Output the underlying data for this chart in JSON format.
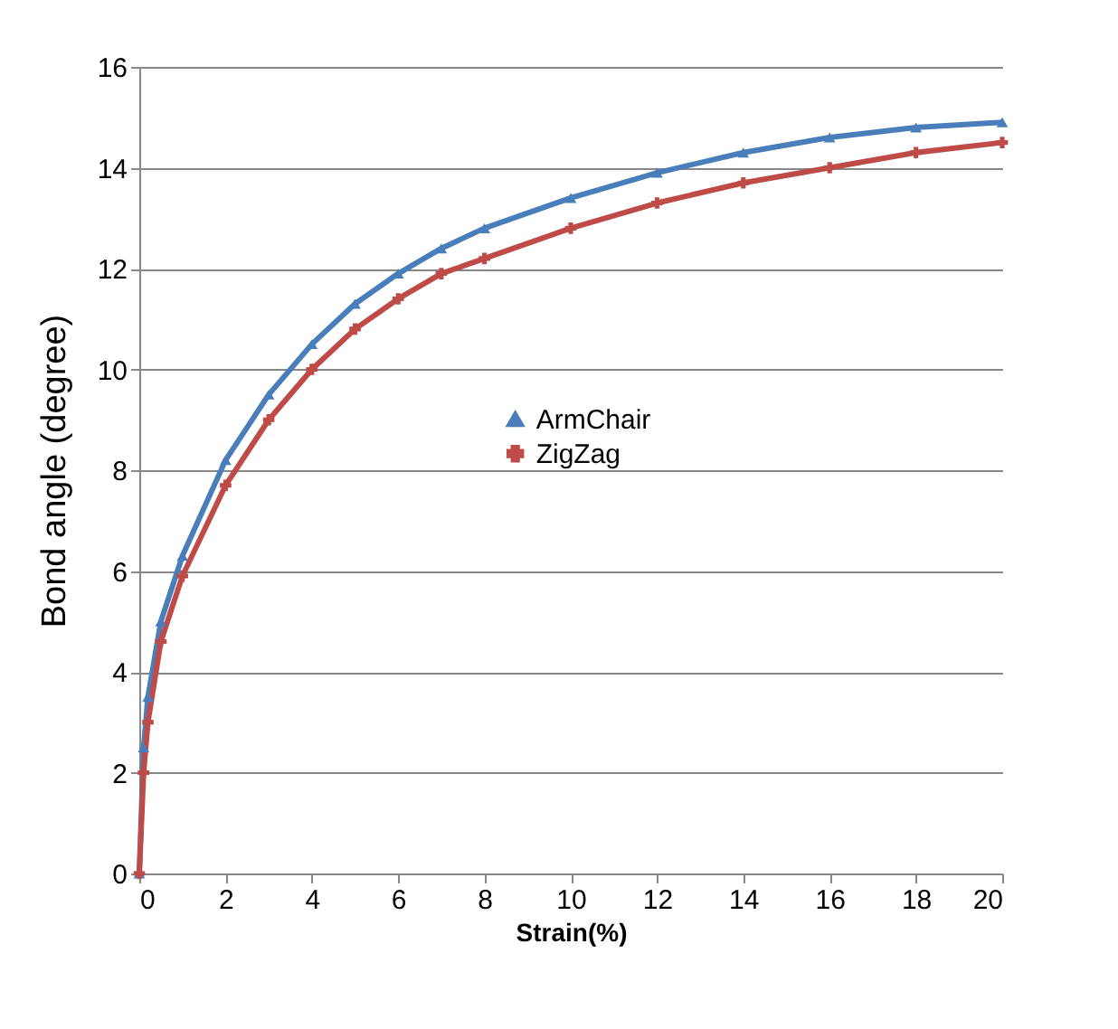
{
  "chart_data": {
    "type": "line",
    "xlabel": "Strain(%)",
    "ylabel": "Bond angle (degree)",
    "x": [
      0,
      0.1,
      0.2,
      0.5,
      1,
      2,
      3,
      4,
      5,
      6,
      7,
      8,
      10,
      12,
      14,
      16,
      18,
      20
    ],
    "series": [
      {
        "name": "ArmChair",
        "color": "#4a7ebb",
        "marker": "triangle",
        "values": [
          0,
          2.5,
          3.5,
          5,
          6.3,
          8.2,
          9.5,
          10.5,
          11.3,
          11.9,
          12.4,
          12.8,
          13.4,
          13.9,
          14.3,
          14.6,
          14.8,
          14.9
        ]
      },
      {
        "name": "ZigZag",
        "color": "#be4b48",
        "marker": "cross",
        "values": [
          0,
          2,
          3,
          4.6,
          5.9,
          7.7,
          9,
          10,
          10.8,
          11.4,
          11.9,
          12.2,
          12.8,
          13.3,
          13.7,
          14,
          14.3,
          14.5
        ]
      }
    ],
    "xlim": [
      0,
      20
    ],
    "xticks": [
      0,
      2,
      4,
      6,
      8,
      10,
      12,
      14,
      16,
      18,
      20
    ],
    "ylim": [
      0,
      16
    ],
    "yticks": [
      0,
      2,
      4,
      6,
      8,
      10,
      12,
      14,
      16
    ],
    "grid": "y",
    "legend": "right",
    "line_style": "solid"
  }
}
